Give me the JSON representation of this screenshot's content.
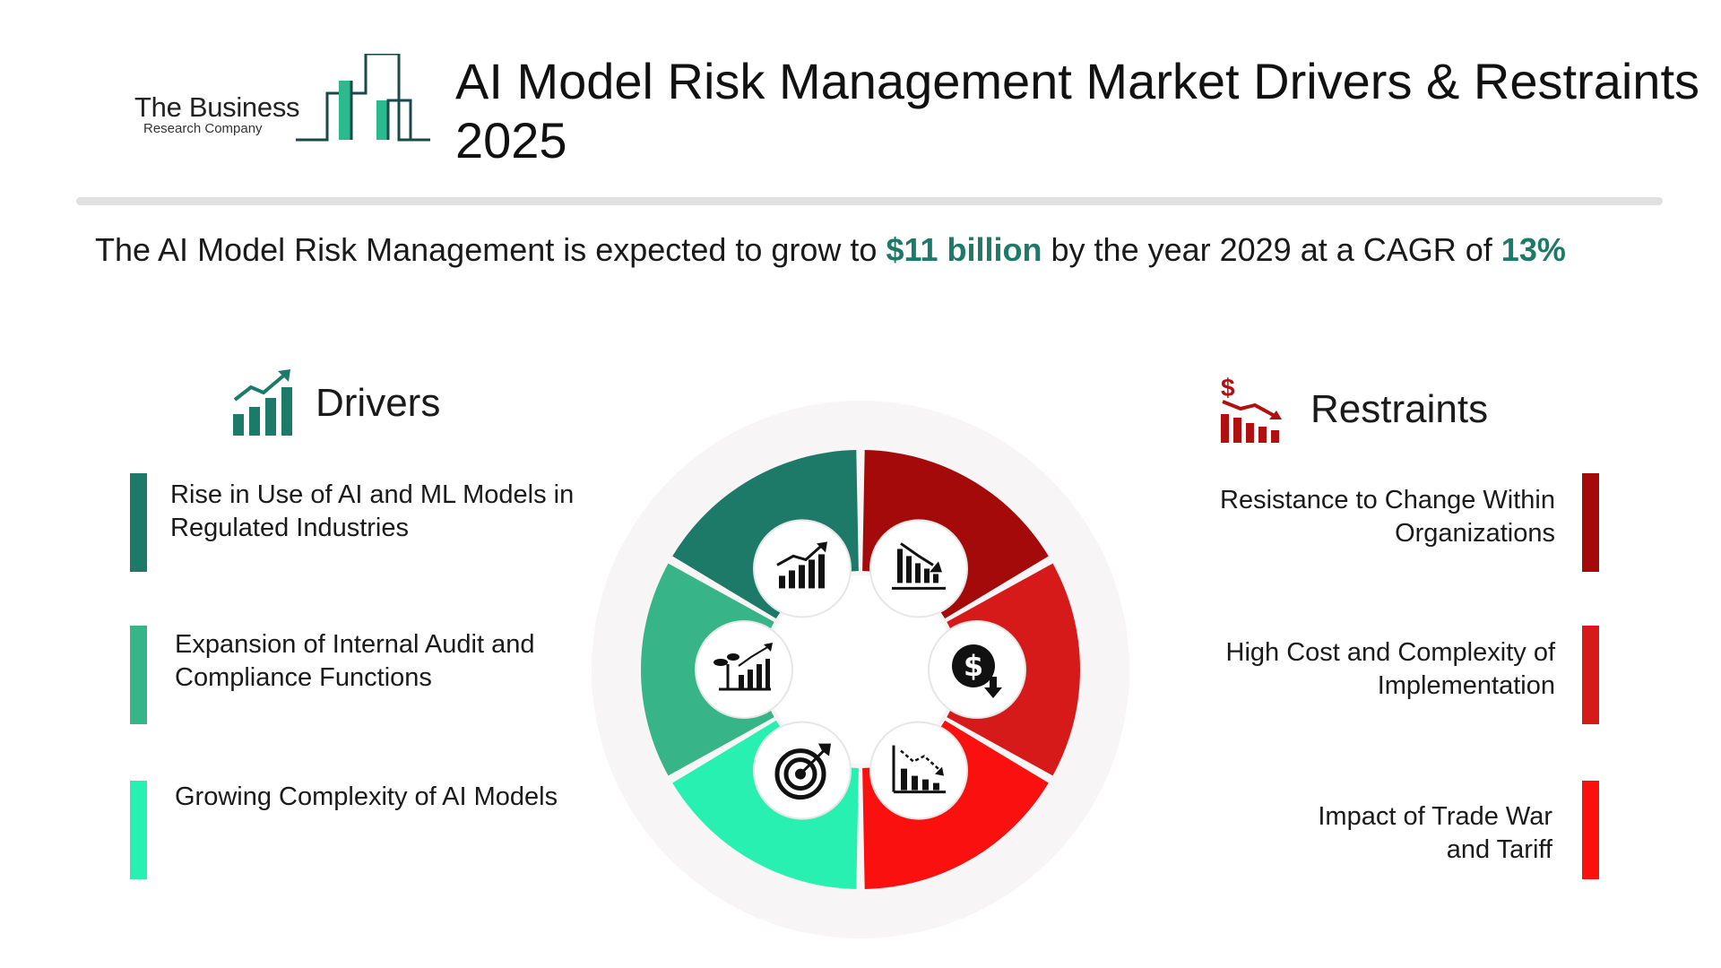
{
  "logo": {
    "line1": "The Business",
    "line2": "Research Company"
  },
  "title": "AI Model Risk Management Market Drivers & Restraints 2025",
  "headline": {
    "prefix": "The AI Model Risk Management is expected to grow to ",
    "value": "$11 billion",
    "middle": " by the year 2029 at a CAGR of ",
    "cagr": "13%"
  },
  "drivers": {
    "heading": "Drivers",
    "icon": "growth-chart-icon",
    "items": [
      {
        "text": "Rise in Use of AI and ML Models in Regulated Industries",
        "color": "#1e7a68"
      },
      {
        "text": "Expansion of Internal Audit and Compliance Functions",
        "color": "#37b488"
      },
      {
        "text": "Growing Complexity of AI Models",
        "color": "#27f0b0"
      }
    ]
  },
  "restraints": {
    "heading": "Restraints",
    "icon": "declining-dollar-chart-icon",
    "items": [
      {
        "text": "Resistance to Change Within Organizations",
        "color": "#a50a0a"
      },
      {
        "text": "High Cost and Complexity of Implementation",
        "color": "#d61a1a"
      },
      {
        "text": "Impact of Trade War and Tariff",
        "color": "#fb1010"
      }
    ]
  },
  "wheel": {
    "segments": [
      {
        "name": "driver-1",
        "color": "#1e7a68",
        "icon": "growth-chart-icon"
      },
      {
        "name": "restraint-1",
        "color": "#a50a0a",
        "icon": "declining-bar-chart-icon"
      },
      {
        "name": "restraint-2",
        "color": "#d61a1a",
        "icon": "dollar-down-icon"
      },
      {
        "name": "restraint-3",
        "color": "#fb1010",
        "icon": "declining-line-chart-icon"
      },
      {
        "name": "driver-3",
        "color": "#27f0b0",
        "icon": "target-icon"
      },
      {
        "name": "driver-2",
        "color": "#37b488",
        "icon": "plant-growth-chart-icon"
      }
    ]
  }
}
